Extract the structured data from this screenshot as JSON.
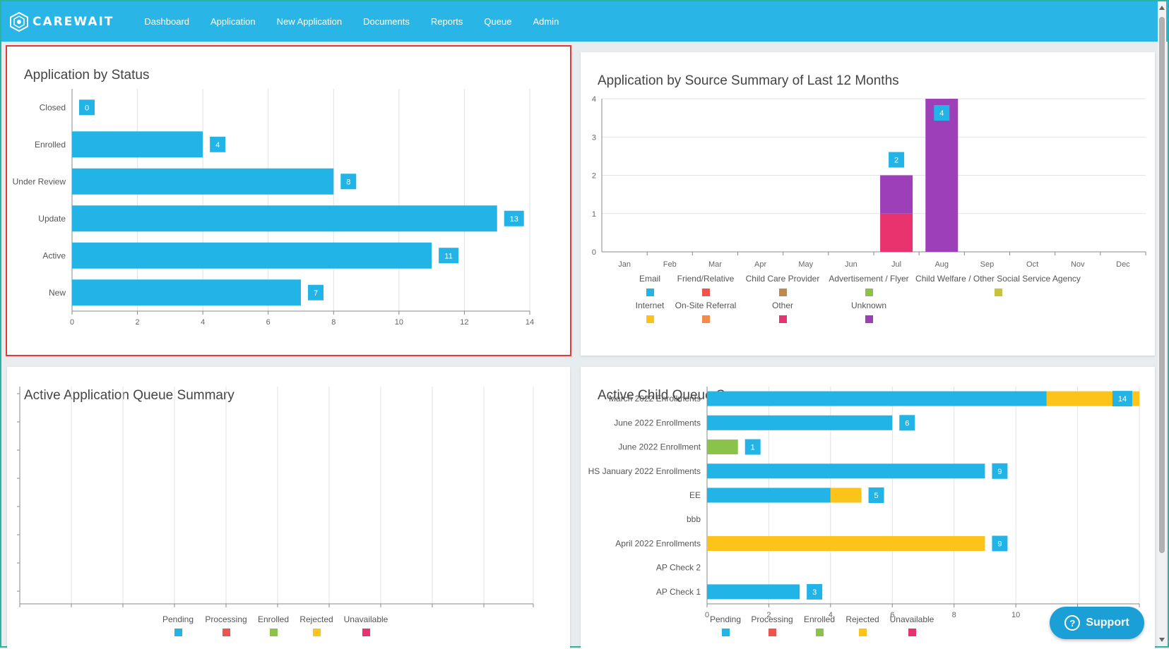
{
  "app": {
    "logo_text": "CAREWAIT",
    "nav": [
      "Dashboard",
      "Application",
      "New Application",
      "Documents",
      "Reports",
      "Queue",
      "Admin"
    ]
  },
  "cards": {
    "status_title": "Application by Status",
    "source_title": "Application by Source Summary of Last 12 Months",
    "app_queue_title": "Active Application Queue Summary",
    "child_queue_title": "Active Child Queue Summary"
  },
  "support_label": "Support",
  "chart_data": [
    {
      "id": "status",
      "type": "bar",
      "orientation": "horizontal",
      "categories": [
        "Closed",
        "Enrolled",
        "Under Review",
        "Update",
        "Active",
        "New"
      ],
      "values": [
        0,
        4,
        8,
        13,
        11,
        7
      ],
      "xlim": [
        0,
        14
      ],
      "xticks": [
        0,
        2,
        4,
        6,
        8,
        10,
        12,
        14
      ],
      "color": "#22b4e6",
      "grid": true
    },
    {
      "id": "source",
      "type": "bar",
      "stacked": true,
      "categories": [
        "Jan",
        "Feb",
        "Mar",
        "Apr",
        "May",
        "Jun",
        "Jul",
        "Aug",
        "Sep",
        "Oct",
        "Nov",
        "Dec"
      ],
      "ylim": [
        0,
        4
      ],
      "yticks": [
        0,
        1,
        2,
        3,
        4
      ],
      "series": [
        {
          "name": "Other",
          "color": "#e8336e",
          "values": [
            0,
            0,
            0,
            0,
            0,
            0,
            1,
            0,
            0,
            0,
            0,
            0
          ]
        },
        {
          "name": "Unknown",
          "color": "#9c3fb8",
          "values": [
            0,
            0,
            0,
            0,
            0,
            0,
            1,
            4,
            0,
            0,
            0,
            0
          ]
        }
      ],
      "totals": [
        0,
        0,
        0,
        0,
        0,
        0,
        2,
        4,
        0,
        0,
        0,
        0
      ],
      "legend": [
        {
          "name": "Email",
          "color": "#22b4e6"
        },
        {
          "name": "Friend/Relative",
          "color": "#ef5350"
        },
        {
          "name": "Child Care Provider",
          "color": "#c28a4a"
        },
        {
          "name": "Advertisement / Flyer",
          "color": "#8bc34a"
        },
        {
          "name": "Child Welfare / Other Social Service Agency",
          "color": "#c6c43a"
        },
        {
          "name": "Internet",
          "color": "#fcc419"
        },
        {
          "name": "On-Site Referral",
          "color": "#f58a4b"
        },
        {
          "name": "Other",
          "color": "#e8336e"
        },
        {
          "name": "Unknown",
          "color": "#9c3fb8"
        }
      ],
      "legend_position": "bottom",
      "grid": true
    },
    {
      "id": "app_queue",
      "type": "bar",
      "orientation": "horizontal",
      "stacked": true,
      "categories": [],
      "legend": [
        {
          "name": "Pending",
          "color": "#22b4e6"
        },
        {
          "name": "Processing",
          "color": "#ef5350"
        },
        {
          "name": "Enrolled",
          "color": "#8bc34a"
        },
        {
          "name": "Rejected",
          "color": "#fcc419"
        },
        {
          "name": "Unavailable",
          "color": "#e8336e"
        }
      ],
      "legend_position": "bottom",
      "grid": true
    },
    {
      "id": "child_queue",
      "type": "bar",
      "orientation": "horizontal",
      "stacked": true,
      "categories": [
        "March 2022 Enrollments",
        "June 2022 Enrollments",
        "June 2022 Enrollment",
        "HS January 2022 Enrollments",
        "EE",
        "bbb",
        "April 2022 Enrollments",
        "AP Check 2",
        "AP Check 1"
      ],
      "xlim": [
        0,
        14
      ],
      "xticks": [
        0,
        2,
        4,
        6,
        8,
        10
      ],
      "series": [
        {
          "name": "Pending",
          "color": "#22b4e6",
          "values": [
            11,
            6,
            0,
            9,
            4,
            0,
            0,
            0,
            3
          ]
        },
        {
          "name": "Processing",
          "color": "#ef5350",
          "values": [
            0,
            0,
            0,
            0,
            0,
            0,
            0,
            0,
            0
          ]
        },
        {
          "name": "Enrolled",
          "color": "#8bc34a",
          "values": [
            0,
            0,
            1,
            0,
            0,
            0,
            0,
            0,
            0
          ]
        },
        {
          "name": "Rejected",
          "color": "#fcc419",
          "values": [
            3,
            0,
            0,
            0,
            1,
            0,
            9,
            0,
            0
          ]
        },
        {
          "name": "Unavailable",
          "color": "#e8336e",
          "values": [
            0,
            0,
            0,
            0,
            0,
            0,
            0,
            0,
            0
          ]
        }
      ],
      "totals": [
        14,
        6,
        1,
        9,
        5,
        null,
        9,
        null,
        3
      ],
      "legend_position": "bottom",
      "grid": true
    }
  ]
}
